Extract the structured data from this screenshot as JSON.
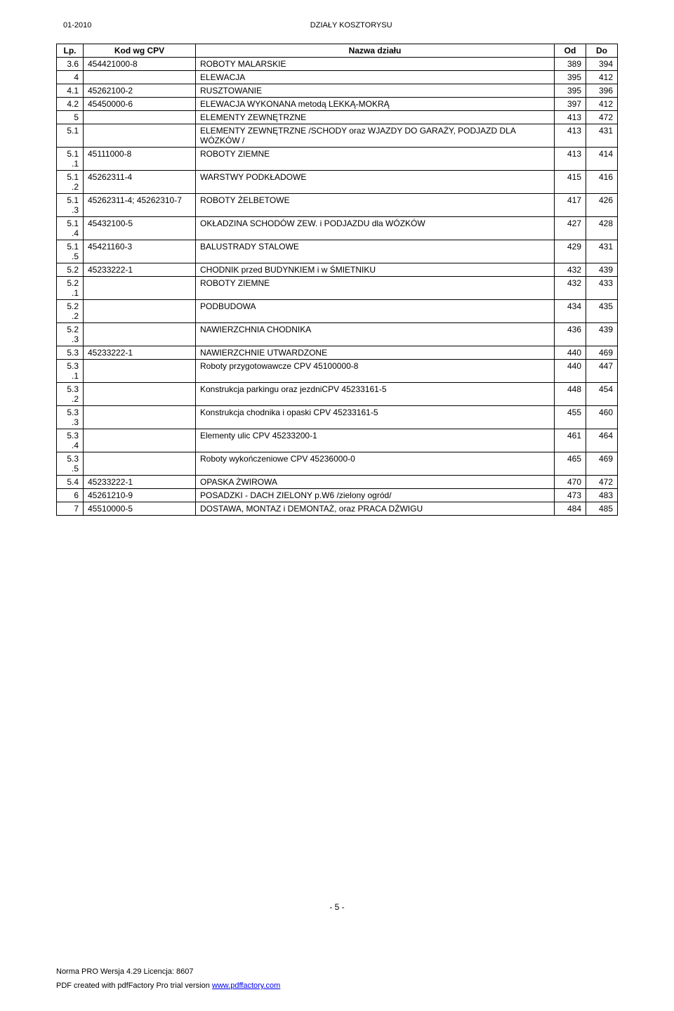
{
  "header": {
    "left": "01-2010",
    "center": "DZIAŁY KOSZTORYSU"
  },
  "table": {
    "headers": {
      "lp": "Lp.",
      "kod": "Kod wg CPV",
      "nazwa": "Nazwa działu",
      "od": "Od",
      "do": "Do"
    },
    "rows": [
      {
        "lp": "3.6",
        "kod": "454421000-8",
        "nazwa": "ROBOTY MALARSKIE",
        "od": "389",
        "do": "394"
      },
      {
        "lp": "4",
        "kod": "",
        "nazwa": "ELEWACJA",
        "od": "395",
        "do": "412"
      },
      {
        "lp": "4.1",
        "kod": "45262100-2",
        "nazwa": "RUSZTOWANIE",
        "od": "395",
        "do": "396"
      },
      {
        "lp": "4.2",
        "kod": "45450000-6",
        "nazwa": "ELEWACJA WYKONANA metodą LEKKĄ-MOKRĄ",
        "od": "397",
        "do": "412"
      },
      {
        "lp": "5",
        "kod": "",
        "nazwa": "ELEMENTY ZEWNĘTRZNE",
        "od": "413",
        "do": "472"
      },
      {
        "lp": "5.1",
        "kod": "",
        "nazwa": "ELEMENTY ZEWNĘTRZNE /SCHODY oraz WJAZDY DO GARAŻY, PODJAZD DLA WÓZKÓW /",
        "od": "413",
        "do": "431"
      },
      {
        "lp": "5.1.1",
        "kod": "45111000-8",
        "nazwa": "ROBOTY ZIEMNE",
        "od": "413",
        "do": "414"
      },
      {
        "lp": "5.1.2",
        "kod": "45262311-4",
        "nazwa": "WARSTWY PODKŁADOWE",
        "od": "415",
        "do": "416"
      },
      {
        "lp": "5.1.3",
        "kod": "45262311-4; 45262310-7",
        "nazwa": "ROBOTY ŻELBETOWE",
        "od": "417",
        "do": "426"
      },
      {
        "lp": "5.1.4",
        "kod": "45432100-5",
        "nazwa": "OKŁADZINA SCHODÓW ZEW. i PODJAZDU dla WÓZKÓW",
        "od": "427",
        "do": "428"
      },
      {
        "lp": "5.1.5",
        "kod": "45421160-3",
        "nazwa": "BALUSTRADY STALOWE",
        "od": "429",
        "do": "431"
      },
      {
        "lp": "5.2",
        "kod": "45233222-1",
        "nazwa": "CHODNIK przed BUDYNKIEM i w ŚMIETNIKU",
        "od": "432",
        "do": "439"
      },
      {
        "lp": "5.2.1",
        "kod": "",
        "nazwa": "ROBOTY ZIEMNE",
        "od": "432",
        "do": "433"
      },
      {
        "lp": "5.2.2",
        "kod": "",
        "nazwa": "PODBUDOWA",
        "od": "434",
        "do": "435"
      },
      {
        "lp": "5.2.3",
        "kod": "",
        "nazwa": "NAWIERZCHNIA CHODNIKA",
        "od": "436",
        "do": "439"
      },
      {
        "lp": "5.3",
        "kod": "45233222-1",
        "nazwa": "NAWIERZCHNIE UTWARDZONE",
        "od": "440",
        "do": "469"
      },
      {
        "lp": "5.3.1",
        "kod": "",
        "nazwa": "Roboty przygotowawcze CPV 45100000-8",
        "od": "440",
        "do": "447"
      },
      {
        "lp": "5.3.2",
        "kod": "",
        "nazwa": "Konstrukcja parkingu oraz jezdniCPV 45233161-5",
        "od": "448",
        "do": "454"
      },
      {
        "lp": "5.3.3",
        "kod": "",
        "nazwa": "Konstrukcja chodnika  i opaski CPV 45233161-5",
        "od": "455",
        "do": "460"
      },
      {
        "lp": "5.3.4",
        "kod": "",
        "nazwa": "Elementy ulic CPV 45233200-1",
        "od": "461",
        "do": "464"
      },
      {
        "lp": "5.3.5",
        "kod": "",
        "nazwa": "Roboty wykończeniowe CPV 45236000-0",
        "od": "465",
        "do": "469"
      },
      {
        "lp": "5.4",
        "kod": "45233222-1",
        "nazwa": "OPASKA ŻWIROWA",
        "od": "470",
        "do": "472"
      },
      {
        "lp": "6",
        "kod": "45261210-9",
        "nazwa": "POSADZKI - DACH ZIELONY    p.W6  /zielony ogród/",
        "od": "473",
        "do": "483"
      },
      {
        "lp": "7",
        "kod": "45510000-5",
        "nazwa": "DOSTAWA, MONTAZ i DEMONTAŻ, oraz PRACA DŹWIGU",
        "od": "484",
        "do": "485"
      }
    ]
  },
  "page_number": "- 5 -",
  "footer": {
    "line1": "Norma PRO Wersja 4.29 Licencja: 8607",
    "line2_prefix": "PDF created with pdfFactory Pro trial version ",
    "line2_link": "www.pdffactory.com"
  }
}
